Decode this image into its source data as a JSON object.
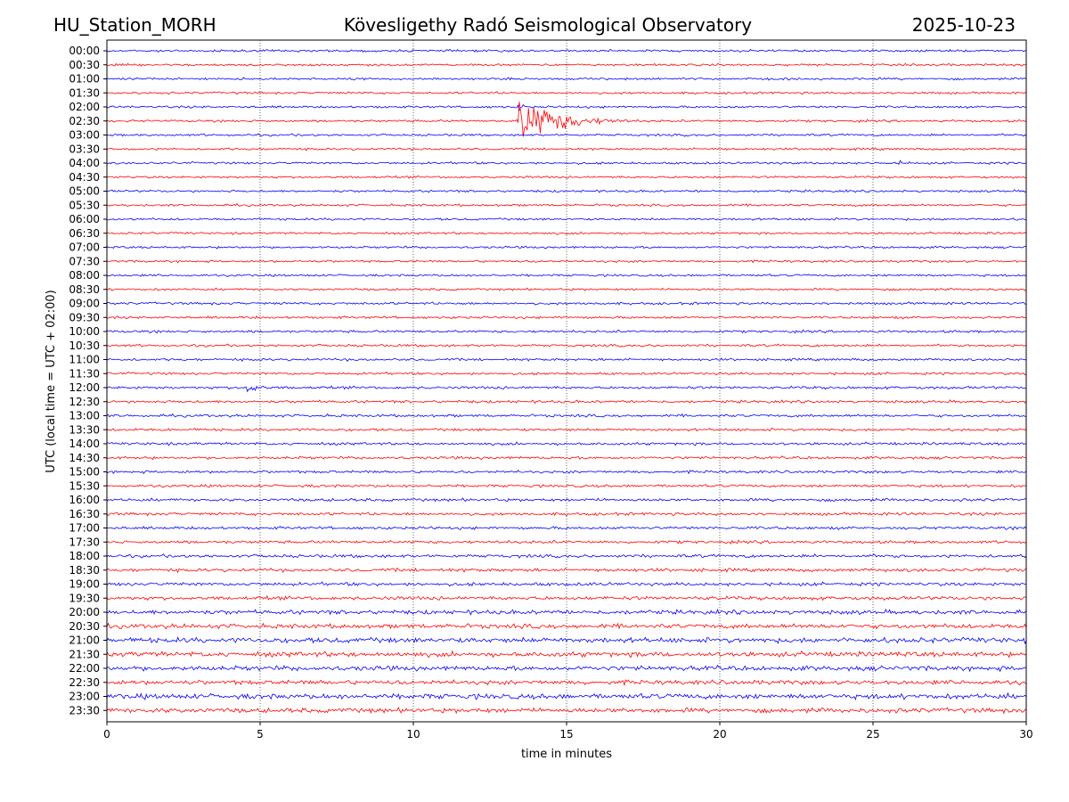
{
  "header": {
    "station": "HU_Station_MORH",
    "observatory": "Kövesligethy Radó Seismological Observatory",
    "date": "2025-10-23"
  },
  "chart_data": {
    "type": "line",
    "title": "Kövesligethy Radó Seismological Observatory",
    "xlabel": "time in minutes",
    "ylabel": "UTC (local time = UTC + 02:00)",
    "xlim": [
      0,
      30
    ],
    "x_ticks": [
      0,
      5,
      10,
      15,
      20,
      25,
      30
    ],
    "x_tick_labels": [
      "0",
      "5",
      "10",
      "15",
      "20",
      "25",
      "30"
    ],
    "vertical_gridlines_at": [
      5,
      10,
      15,
      20,
      25
    ],
    "trace_colors": [
      "#0000ff",
      "#ff0000"
    ],
    "traces": [
      "00:00",
      "00:30",
      "01:00",
      "01:30",
      "02:00",
      "02:30",
      "03:00",
      "03:30",
      "04:00",
      "04:30",
      "05:00",
      "05:30",
      "06:00",
      "06:30",
      "07:00",
      "07:30",
      "08:00",
      "08:30",
      "09:00",
      "09:30",
      "10:00",
      "10:30",
      "11:00",
      "11:30",
      "12:00",
      "12:30",
      "13:00",
      "13:30",
      "14:00",
      "14:30",
      "15:00",
      "15:30",
      "16:00",
      "16:30",
      "17:00",
      "17:30",
      "18:00",
      "18:30",
      "19:00",
      "19:30",
      "20:00",
      "20:30",
      "21:00",
      "21:30",
      "22:00",
      "22:30",
      "23:00",
      "23:30"
    ],
    "noise_amplitude": [
      1.0,
      1.0,
      1.0,
      1.0,
      1.0,
      1.0,
      1.0,
      1.0,
      1.0,
      1.0,
      1.0,
      1.0,
      1.0,
      1.0,
      1.0,
      1.0,
      1.0,
      1.0,
      1.1,
      1.1,
      1.1,
      1.1,
      1.1,
      1.1,
      1.2,
      1.2,
      1.2,
      1.2,
      1.2,
      1.2,
      1.2,
      1.2,
      1.3,
      1.3,
      1.3,
      1.3,
      1.4,
      1.5,
      1.5,
      1.6,
      1.9,
      2.0,
      2.3,
      2.2,
      2.1,
      2.0,
      2.3,
      2.1
    ],
    "events": [
      {
        "trace": "02:00",
        "start_min": 13.4,
        "peak_amplitude": 6,
        "duration_min": 1.0,
        "color": "#0000ff"
      },
      {
        "trace": "02:30",
        "start_min": 13.35,
        "peak_amplitude": 28,
        "duration_min": 5.5,
        "color": "#ff0000"
      },
      {
        "trace": "04:00",
        "start_min": 25.85,
        "peak_amplitude": 6,
        "duration_min": 0.2,
        "color": "#0000ff"
      },
      {
        "trace": "12:00",
        "start_min": 4.5,
        "peak_amplitude": 8,
        "duration_min": 2.0,
        "color": "#0000ff"
      },
      {
        "trace": "12:30",
        "start_min": 25.5,
        "peak_amplitude": 2,
        "duration_min": 1.5,
        "color": "#ff0000"
      }
    ]
  }
}
